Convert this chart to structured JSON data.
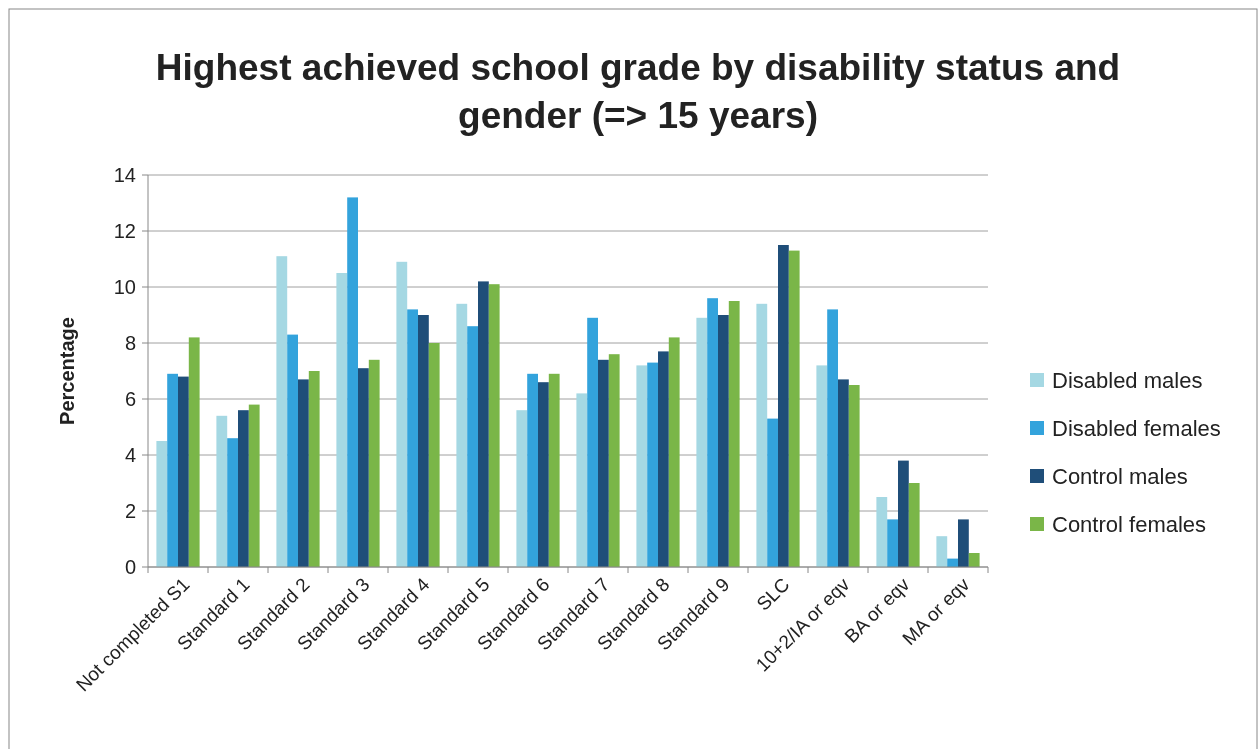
{
  "chart_data": {
    "type": "bar",
    "title": "Highest achieved school grade by disability status and gender (=> 15 years)",
    "ylabel": "Percentage",
    "categories": [
      "Not completed S1",
      "Standard 1",
      "Standard 2",
      "Standard 3",
      "Standard 4",
      "Standard 5",
      "Standard 6",
      "Standard 7",
      "Standard 8",
      "Standard 9",
      "SLC",
      "10+2/IA or eqv",
      "BA or eqv",
      "MA or eqv"
    ],
    "series": [
      {
        "name": "Disabled males",
        "color": "#a5d8e3",
        "values": [
          4.5,
          5.4,
          11.1,
          10.5,
          10.9,
          9.4,
          5.6,
          6.2,
          7.2,
          8.9,
          9.4,
          7.2,
          2.5,
          1.1
        ]
      },
      {
        "name": "Disabled females",
        "color": "#33a3dc",
        "values": [
          6.9,
          4.6,
          8.3,
          13.2,
          9.2,
          8.6,
          6.9,
          8.9,
          7.3,
          9.6,
          5.3,
          9.2,
          1.7,
          0.3
        ]
      },
      {
        "name": "Control males",
        "color": "#1f4e79",
        "values": [
          6.8,
          5.6,
          6.7,
          7.1,
          9.0,
          10.2,
          6.6,
          7.4,
          7.7,
          9.0,
          11.5,
          6.7,
          3.8,
          1.7
        ]
      },
      {
        "name": "Control females",
        "color": "#7ab648",
        "values": [
          8.2,
          5.8,
          7.0,
          7.4,
          8.0,
          10.1,
          6.9,
          7.6,
          8.2,
          9.5,
          11.3,
          6.5,
          3.0,
          0.5
        ]
      }
    ],
    "ylim": [
      0,
      14
    ],
    "yticks": [
      0,
      2,
      4,
      6,
      8,
      10,
      12,
      14
    ],
    "grid": "y",
    "legend": "right"
  }
}
